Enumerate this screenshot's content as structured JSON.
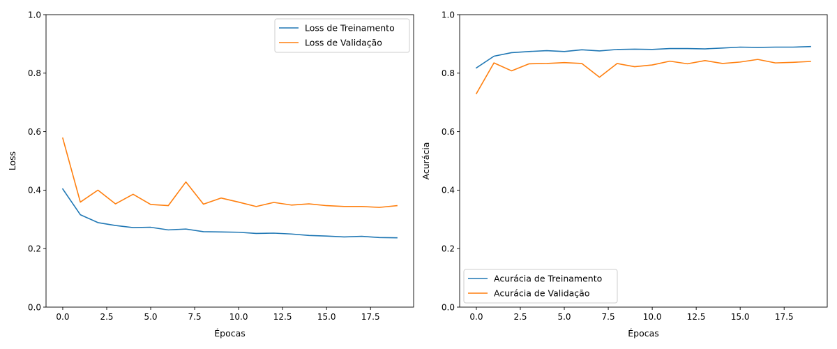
{
  "chart_data": [
    {
      "type": "line",
      "title": "",
      "xlabel": "Épocas",
      "ylabel": "Loss",
      "xlim": [
        -0.95,
        19.95
      ],
      "ylim": [
        0,
        1
      ],
      "xticks": [
        0,
        2.5,
        5,
        7.5,
        10,
        12.5,
        15,
        17.5
      ],
      "xtick_labels": [
        "0.0",
        "2.5",
        "5.0",
        "7.5",
        "10.0",
        "12.5",
        "15.0",
        "17.5"
      ],
      "yticks": [
        0,
        0.2,
        0.4,
        0.6,
        0.8,
        1.0
      ],
      "ytick_labels": [
        "0.0",
        "0.2",
        "0.4",
        "0.6",
        "0.8",
        "1.0"
      ],
      "grid": false,
      "legend_position": "top-right",
      "x": [
        0,
        1,
        2,
        3,
        4,
        5,
        6,
        7,
        8,
        9,
        10,
        11,
        12,
        13,
        14,
        15,
        16,
        17,
        18,
        19
      ],
      "series": [
        {
          "name": "Loss de Treinamento",
          "color": "#1f77b4",
          "values": [
            0.404,
            0.316,
            0.289,
            0.279,
            0.272,
            0.273,
            0.264,
            0.267,
            0.258,
            0.257,
            0.256,
            0.252,
            0.253,
            0.25,
            0.245,
            0.243,
            0.24,
            0.242,
            0.238,
            0.237
          ]
        },
        {
          "name": "Loss de Validação",
          "color": "#ff7f0e",
          "values": [
            0.578,
            0.359,
            0.4,
            0.353,
            0.386,
            0.351,
            0.347,
            0.428,
            0.352,
            0.373,
            0.359,
            0.344,
            0.358,
            0.349,
            0.353,
            0.347,
            0.344,
            0.344,
            0.341,
            0.347
          ]
        }
      ]
    },
    {
      "type": "line",
      "title": "",
      "xlabel": "Épocas",
      "ylabel": "Acurácia",
      "xlim": [
        -0.95,
        19.95
      ],
      "ylim": [
        0,
        1
      ],
      "xticks": [
        0,
        2.5,
        5,
        7.5,
        10,
        12.5,
        15,
        17.5
      ],
      "xtick_labels": [
        "0.0",
        "2.5",
        "5.0",
        "7.5",
        "10.0",
        "12.5",
        "15.0",
        "17.5"
      ],
      "yticks": [
        0,
        0.2,
        0.4,
        0.6,
        0.8,
        1.0
      ],
      "ytick_labels": [
        "0.0",
        "0.2",
        "0.4",
        "0.6",
        "0.8",
        "1.0"
      ],
      "grid": false,
      "legend_position": "bottom-left",
      "x": [
        0,
        1,
        2,
        3,
        4,
        5,
        6,
        7,
        8,
        9,
        10,
        11,
        12,
        13,
        14,
        15,
        16,
        17,
        18,
        19
      ],
      "series": [
        {
          "name": "Acurácia de Treinamento",
          "color": "#1f77b4",
          "values": [
            0.818,
            0.858,
            0.87,
            0.874,
            0.877,
            0.874,
            0.88,
            0.876,
            0.881,
            0.882,
            0.881,
            0.884,
            0.884,
            0.883,
            0.886,
            0.889,
            0.888,
            0.889,
            0.889,
            0.891
          ]
        },
        {
          "name": "Acurácia de Validação",
          "color": "#ff7f0e",
          "values": [
            0.73,
            0.835,
            0.808,
            0.832,
            0.833,
            0.836,
            0.833,
            0.786,
            0.833,
            0.822,
            0.828,
            0.841,
            0.832,
            0.843,
            0.833,
            0.838,
            0.847,
            0.835,
            0.837,
            0.84
          ]
        }
      ]
    }
  ]
}
